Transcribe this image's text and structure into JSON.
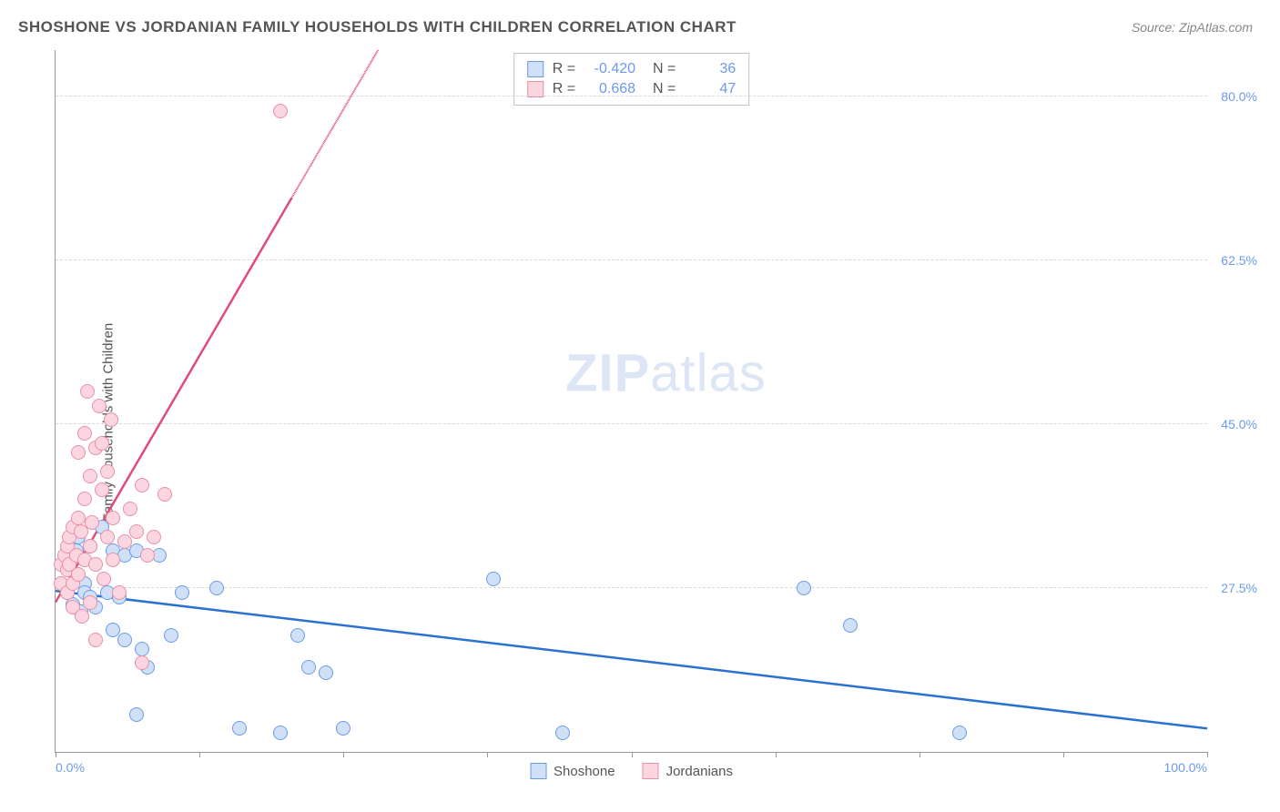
{
  "title": "SHOSHONE VS JORDANIAN FAMILY HOUSEHOLDS WITH CHILDREN CORRELATION CHART",
  "source": "Source: ZipAtlas.com",
  "ylabel": "Family Households with Children",
  "watermark_bold": "ZIP",
  "watermark_rest": "atlas",
  "chart": {
    "type": "scatter",
    "xlim": [
      0,
      100
    ],
    "ylim": [
      10,
      85
    ],
    "xtick_labels": {
      "min": "0.0%",
      "max": "100.0%"
    },
    "xtick_positions": [
      0,
      12.5,
      25,
      37.5,
      50,
      62.5,
      75,
      87.5,
      100
    ],
    "ytick_labels": [
      "27.5%",
      "45.0%",
      "62.5%",
      "80.0%"
    ],
    "ytick_values": [
      27.5,
      45.0,
      62.5,
      80.0
    ],
    "grid_color": "#d8d8d8",
    "axis_color": "#999999",
    "background_color": "#ffffff",
    "label_color_axis": "#6b9be8",
    "point_radius": 8,
    "series": [
      {
        "name": "Shoshone",
        "fill": "#cfe0f7",
        "stroke": "#6b9be8",
        "trend_color": "#2a71d0",
        "trend": {
          "x1": 0,
          "y1": 27.2,
          "x2": 100,
          "y2": 12.5,
          "dashed_from_x": null
        },
        "R": "-0.420",
        "N": "36",
        "points": [
          [
            1.0,
            27.0
          ],
          [
            1.5,
            25.8
          ],
          [
            1.8,
            31.5
          ],
          [
            2.0,
            33.0
          ],
          [
            2.2,
            25.0
          ],
          [
            2.5,
            28.0
          ],
          [
            2.5,
            27.0
          ],
          [
            3.0,
            32.0
          ],
          [
            3.0,
            26.5
          ],
          [
            3.5,
            25.5
          ],
          [
            4.0,
            34.0
          ],
          [
            4.5,
            27.0
          ],
          [
            5.0,
            31.5
          ],
          [
            5.0,
            23.0
          ],
          [
            5.5,
            26.5
          ],
          [
            6.0,
            31.0
          ],
          [
            6.0,
            22.0
          ],
          [
            7.0,
            31.5
          ],
          [
            7.5,
            21.0
          ],
          [
            8.0,
            19.0
          ],
          [
            9.0,
            31.0
          ],
          [
            10.0,
            22.5
          ],
          [
            11.0,
            27.0
          ],
          [
            14.0,
            27.5
          ],
          [
            16.0,
            12.5
          ],
          [
            19.5,
            12.0
          ],
          [
            21.0,
            22.5
          ],
          [
            22.0,
            19.0
          ],
          [
            23.5,
            18.5
          ],
          [
            25.0,
            12.5
          ],
          [
            38.0,
            28.5
          ],
          [
            44.0,
            12.0
          ],
          [
            65.0,
            27.5
          ],
          [
            69.0,
            23.5
          ],
          [
            78.5,
            12.0
          ],
          [
            7.0,
            14.0
          ]
        ]
      },
      {
        "name": "Jordanians",
        "fill": "#fbd6e0",
        "stroke": "#e98fa8",
        "trend_color": "#e34b77",
        "trend": {
          "x1": 0,
          "y1": 26.0,
          "x2": 28.0,
          "y2": 85.0,
          "dashed_from_x": 20.5
        },
        "R": "0.668",
        "N": "47",
        "points": [
          [
            0.5,
            28.0
          ],
          [
            0.5,
            30.0
          ],
          [
            0.8,
            31.0
          ],
          [
            1.0,
            27.0
          ],
          [
            1.0,
            29.5
          ],
          [
            1.0,
            32.0
          ],
          [
            1.2,
            33.0
          ],
          [
            1.2,
            30.0
          ],
          [
            1.5,
            28.0
          ],
          [
            1.5,
            34.0
          ],
          [
            1.5,
            25.5
          ],
          [
            1.8,
            31.0
          ],
          [
            2.0,
            29.0
          ],
          [
            2.0,
            35.0
          ],
          [
            2.0,
            42.0
          ],
          [
            2.2,
            33.5
          ],
          [
            2.5,
            30.5
          ],
          [
            2.5,
            37.0
          ],
          [
            2.5,
            44.0
          ],
          [
            2.8,
            48.5
          ],
          [
            3.0,
            32.0
          ],
          [
            3.0,
            39.5
          ],
          [
            3.0,
            26.0
          ],
          [
            3.2,
            34.5
          ],
          [
            3.5,
            30.0
          ],
          [
            3.5,
            42.5
          ],
          [
            3.5,
            22.0
          ],
          [
            4.0,
            38.0
          ],
          [
            4.0,
            43.0
          ],
          [
            4.5,
            33.0
          ],
          [
            4.5,
            40.0
          ],
          [
            5.0,
            35.0
          ],
          [
            5.0,
            30.5
          ],
          [
            5.5,
            27.0
          ],
          [
            6.0,
            32.5
          ],
          [
            6.5,
            36.0
          ],
          [
            7.0,
            33.5
          ],
          [
            7.5,
            38.5
          ],
          [
            8.0,
            31.0
          ],
          [
            8.5,
            33.0
          ],
          [
            9.5,
            37.5
          ],
          [
            4.8,
            45.5
          ],
          [
            3.8,
            47.0
          ],
          [
            7.5,
            19.5
          ],
          [
            2.3,
            24.5
          ],
          [
            4.2,
            28.5
          ],
          [
            19.5,
            78.5
          ]
        ]
      }
    ]
  },
  "legend": {
    "items": [
      {
        "label": "Shoshone",
        "fill": "#cfe0f7",
        "stroke": "#6b9be8"
      },
      {
        "label": "Jordanians",
        "fill": "#fbd6e0",
        "stroke": "#e98fa8"
      }
    ]
  }
}
